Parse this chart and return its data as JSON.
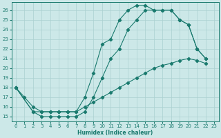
{
  "xlabel": "Humidex (Indice chaleur)",
  "bg_color": "#cce8e8",
  "line_color": "#1a7a6e",
  "grid_color": "#aad0d0",
  "xlim": [
    -0.5,
    23.5
  ],
  "ylim": [
    14.5,
    26.8
  ],
  "xticks": [
    0,
    1,
    2,
    3,
    4,
    5,
    6,
    7,
    8,
    9,
    10,
    11,
    12,
    13,
    14,
    15,
    16,
    17,
    18,
    19,
    20,
    21,
    22,
    23
  ],
  "yticks": [
    15,
    16,
    17,
    18,
    19,
    20,
    21,
    22,
    23,
    24,
    25,
    26
  ],
  "line1_x": [
    0,
    1,
    2,
    3,
    4,
    5,
    6,
    7,
    8,
    9,
    10,
    11,
    12,
    13,
    14,
    15,
    16,
    17,
    18,
    19,
    20,
    21,
    22
  ],
  "line1_y": [
    18,
    17,
    16,
    15.5,
    15.5,
    15.5,
    15.5,
    15.5,
    17,
    19.5,
    22.5,
    23,
    25,
    26,
    26.5,
    26.5,
    26,
    26,
    26,
    25,
    24.5,
    22,
    21
  ],
  "line2_x": [
    0,
    2,
    3,
    4,
    5,
    6,
    7,
    8,
    9,
    10,
    11,
    12,
    13,
    14,
    15,
    16,
    17,
    18,
    19,
    20,
    21,
    22
  ],
  "line2_y": [
    18,
    15.5,
    15,
    15,
    15,
    15,
    15,
    15.5,
    17,
    19,
    21,
    22,
    24,
    25,
    26,
    26,
    26,
    26,
    25,
    24.5,
    22,
    21
  ],
  "line3_x": [
    0,
    2,
    3,
    4,
    5,
    6,
    7,
    8,
    9,
    10,
    11,
    12,
    13,
    14,
    15,
    16,
    17,
    18,
    19,
    20,
    21,
    22
  ],
  "line3_y": [
    18,
    15.5,
    15.5,
    15.5,
    15.5,
    15.5,
    15.5,
    16,
    16.5,
    17,
    17.5,
    18,
    18.5,
    19,
    19.5,
    20,
    20.3,
    20.5,
    20.8,
    21,
    20.8,
    20.5
  ]
}
